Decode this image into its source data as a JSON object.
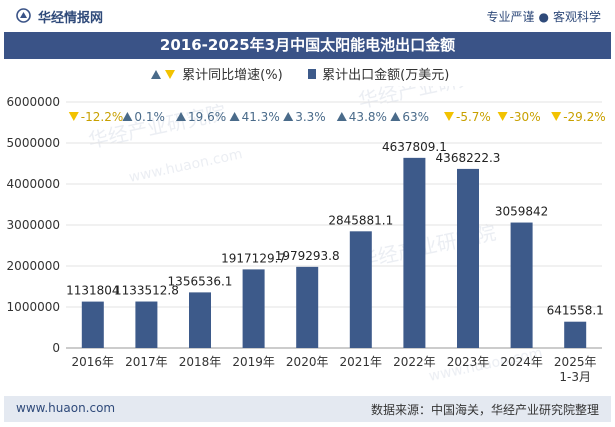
{
  "header": {
    "brand": "华经情报网",
    "slogan_a": "专业严谨",
    "slogan_b": "客观科学"
  },
  "colors": {
    "bar": "#3d5a8a",
    "up": "#4a6b8a",
    "down": "#f2c200",
    "title_bg": "#3a5387"
  },
  "footer": {
    "left": "www.huaon.com",
    "right": "数据来源：中国海关，华经产业研究院整理"
  },
  "chart_data": {
    "type": "bar",
    "title": "2016-2025年3月中国太阳能电池出口金额",
    "categories": [
      "2016年",
      "2017年",
      "2018年",
      "2019年",
      "2020年",
      "2021年",
      "2022年",
      "2023年",
      "2024年",
      "2025年\n1-3月"
    ],
    "ylim": [
      0,
      6000000
    ],
    "yticks": [
      0,
      1000000,
      2000000,
      3000000,
      4000000,
      5000000,
      6000000
    ],
    "series": [
      {
        "name": "累计出口金额(万美元)",
        "type": "bar",
        "values": [
          1131804,
          1133512.8,
          1356536.1,
          1917129.7,
          1979293.8,
          2845881.1,
          4637809.1,
          4368222.3,
          3059842,
          641558.1
        ],
        "labels": [
          "1131804",
          "1133512.8",
          "1356536.1",
          "1917129.7",
          "1979293.8",
          "2845881.1",
          "4637809.1",
          "4368222.3",
          "3059842",
          "641558.1"
        ]
      },
      {
        "name": "累计同比增速(%)",
        "type": "marker",
        "values": [
          -12.2,
          0.1,
          19.6,
          41.3,
          3.3,
          43.8,
          63,
          -5.7,
          -30,
          -29.2
        ],
        "labels": [
          "-12.2%",
          "0.1%",
          "19.6%",
          "41.3%",
          "3.3%",
          "43.8%",
          "63%",
          "-5.7%",
          "-30%",
          "-29.2%"
        ]
      }
    ]
  }
}
